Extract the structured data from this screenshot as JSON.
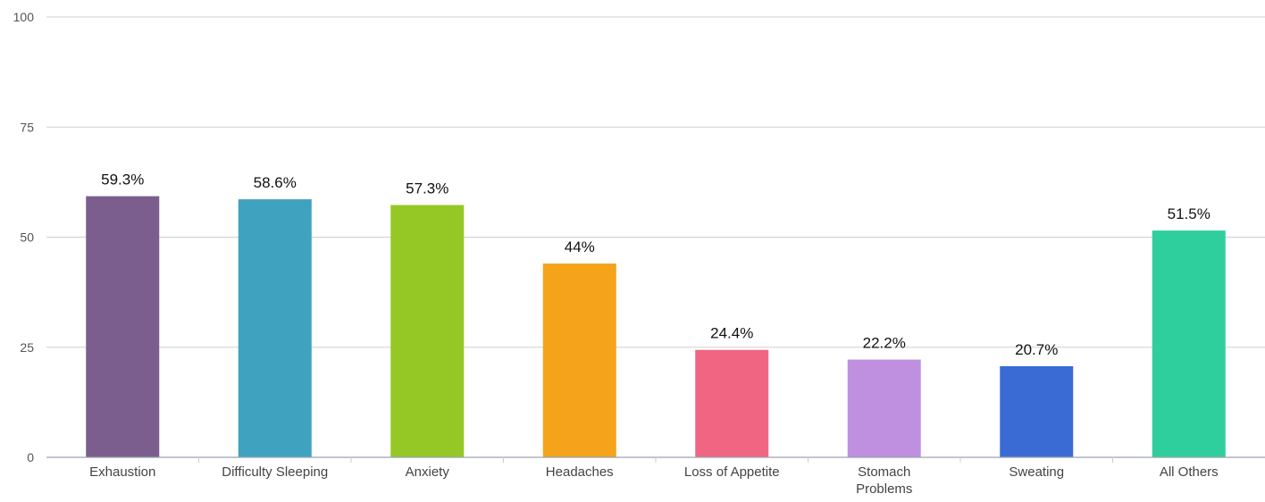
{
  "chart_data": {
    "type": "bar",
    "title": "",
    "xlabel": "",
    "ylabel": "",
    "ylim": [
      0,
      100
    ],
    "yticks": [
      0,
      25,
      50,
      75,
      100
    ],
    "grid": true,
    "categories": [
      "Exhaustion",
      "Difficulty Sleeping",
      "Anxiety",
      "Headaches",
      "Loss of Appetite",
      "Stomach Problems",
      "Sweating",
      "All Others"
    ],
    "category_lines": [
      [
        "Exhaustion"
      ],
      [
        "Difficulty Sleeping"
      ],
      [
        "Anxiety"
      ],
      [
        "Headaches"
      ],
      [
        "Loss of Appetite"
      ],
      [
        "Stomach",
        "Problems"
      ],
      [
        "Sweating"
      ],
      [
        "All Others"
      ]
    ],
    "values": [
      59.3,
      58.6,
      57.3,
      44,
      24.4,
      22.2,
      20.7,
      51.5
    ],
    "value_labels": [
      "59.3%",
      "58.6%",
      "57.3%",
      "44%",
      "24.4%",
      "22.2%",
      "20.7%",
      "51.5%"
    ],
    "colors": [
      "#7b5e8e",
      "#3fa2bf",
      "#96c825",
      "#f4a31a",
      "#f06582",
      "#bf90e0",
      "#3a6bd4",
      "#2ecf9c"
    ]
  }
}
